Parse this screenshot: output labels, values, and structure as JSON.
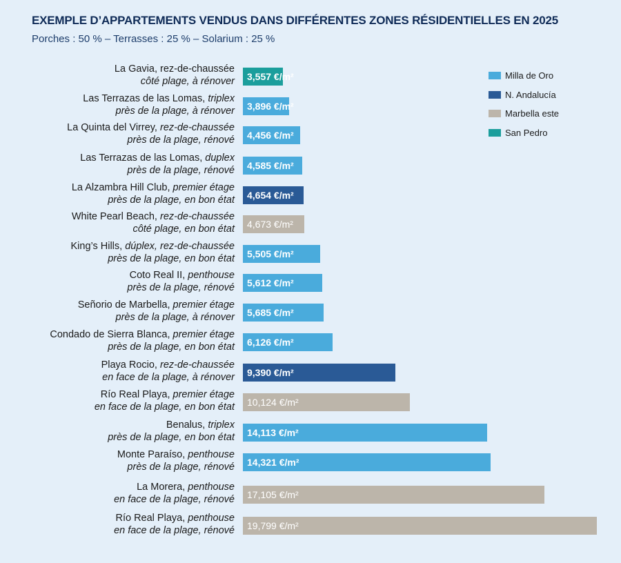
{
  "chart_data": {
    "type": "bar",
    "orientation": "horizontal",
    "title": "EXEMPLE D’APPARTEMENTS VENDUS DANS DIFFÉRENTES ZONES RÉSIDENTIELLES EN 2025",
    "subtitle": "Porches : 50 % – Terrasses : 25 % – Solarium : 25 %",
    "unit": "€/m²",
    "legend_position": "top-right",
    "grid": false,
    "zones": [
      {
        "name": "Milla de Oro",
        "color": "#4aabdc"
      },
      {
        "name": "N. Andalucía",
        "color": "#2a5a96"
      },
      {
        "name": "Marbella este",
        "color": "#bcb5aa"
      },
      {
        "name": "San Pedro",
        "color": "#1b9e9c"
      }
    ],
    "bars": [
      {
        "name": "La Gavia",
        "type": "rez-de-chaussée",
        "type_italic": false,
        "detail": "côté plage, à rénover",
        "value": 3557,
        "label": "3,557 €/m²",
        "zone": "San Pedro"
      },
      {
        "name": "Las Terrazas de las Lomas",
        "type": "triplex",
        "type_italic": true,
        "detail": "près de la plage, à rénover",
        "value": 3896,
        "label": "3,896 €/m²",
        "zone": "Milla de Oro"
      },
      {
        "name": "La Quinta del Virrey",
        "type": "rez-de-chaussée",
        "type_italic": true,
        "detail": "près de la plage, rénové",
        "value": 4456,
        "label": "4,456 €/m²",
        "zone": "Milla de Oro"
      },
      {
        "name": "Las Terrazas de las Lomas",
        "type": "duplex",
        "type_italic": true,
        "detail": "près de la plage, rénové",
        "value": 4585,
        "label": "4,585 €/m²",
        "zone": "Milla de Oro"
      },
      {
        "name": "La Alzambra Hill Club",
        "type": "premier étage",
        "type_italic": true,
        "detail": "près de la plage, en bon état",
        "value": 4654,
        "label": "4,654 €/m²",
        "zone": "N. Andalucía"
      },
      {
        "name": "White Pearl Beach",
        "type": "rez-de-chaussée",
        "type_italic": true,
        "detail": "côté plage, en bon état",
        "value": 4673,
        "label": "4,673 €/m²",
        "zone": "Marbella este"
      },
      {
        "name": "King’s Hills",
        "type": "dúplex, rez-de-chaussée",
        "type_italic": true,
        "detail": "près de la plage, en bon état",
        "value": 5505,
        "label": "5,505 €/m²",
        "zone": "Milla de Oro"
      },
      {
        "name": "Coto Real II",
        "type": "penthouse",
        "type_italic": true,
        "detail": "près de la plage, rénové",
        "value": 5612,
        "label": "5,612 €/m²",
        "zone": "Milla de Oro"
      },
      {
        "name": "Señorio de Marbella",
        "type": "premier étage",
        "type_italic": true,
        "detail": "près de la plage, à rénover",
        "value": 5685,
        "label": "5,685 €/m²",
        "zone": "Milla de Oro"
      },
      {
        "name": "Condado de Sierra Blanca",
        "type": "premier étage",
        "type_italic": true,
        "detail": "près de la plage, en bon état",
        "value": 6126,
        "label": "6,126 €/m²",
        "zone": "Milla de Oro"
      },
      {
        "name": "Playa Rocio",
        "type": "rez-de-chaussée",
        "type_italic": true,
        "detail": "en face de la plage, à rénover",
        "value": 9390,
        "label": "9,390 €/m²",
        "zone": "N. Andalucía"
      },
      {
        "name": "Río Real Playa",
        "type": "premier étage",
        "type_italic": true,
        "detail": "en face de la plage, en bon état",
        "value": 10124,
        "label": "10,124 €/m²",
        "zone": "Marbella este"
      },
      {
        "name": "Benalus",
        "type": "triplex",
        "type_italic": true,
        "detail": "près de la plage, en bon état",
        "value": 14113,
        "label": "14,113 €/m²",
        "zone": "Milla de Oro"
      },
      {
        "name": "Monte Paraíso",
        "type": "penthouse",
        "type_italic": true,
        "detail": "près de la plage, rénové",
        "value": 14321,
        "label": "14,321 €/m²",
        "zone": "Milla de Oro"
      },
      {
        "name": "La Morera",
        "type": "penthouse",
        "type_italic": true,
        "detail": "en face de la plage, rénové",
        "value": 17105,
        "label": "17,105 €/m²",
        "zone": "Marbella este"
      },
      {
        "name": "Río Real Playa",
        "type": "penthouse",
        "type_italic": true,
        "detail": "en face de la plage, rénové",
        "value": 19799,
        "label": "19,799 €/m²",
        "zone": "Marbella este"
      }
    ]
  }
}
